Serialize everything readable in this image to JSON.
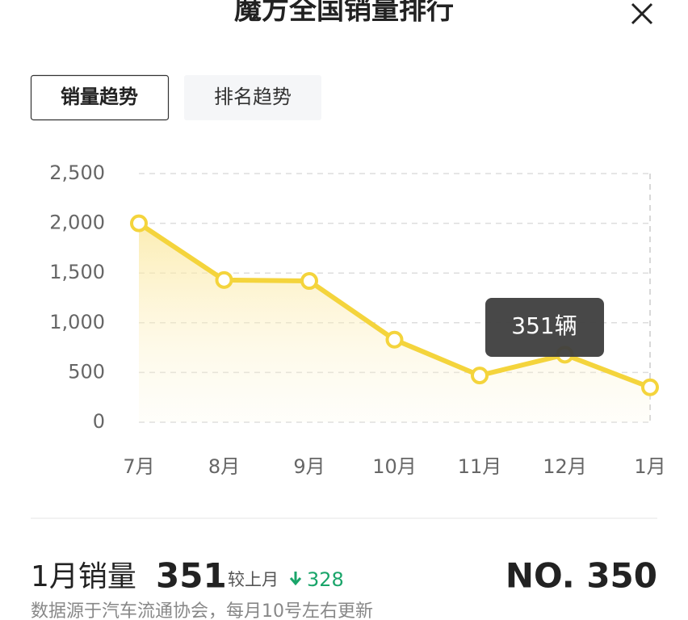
{
  "header": {
    "title": "魔方全国销量排行"
  },
  "tabs": [
    "销量趋势",
    "排名趋势"
  ],
  "chart_data": {
    "type": "line",
    "categories": [
      "7月",
      "8月",
      "9月",
      "10月",
      "11月",
      "12月",
      "1月"
    ],
    "values": [
      2000,
      1430,
      1420,
      830,
      470,
      679,
      351
    ],
    "color": "#f4d43c",
    "ylim": [
      0,
      2500
    ],
    "yticks": [
      0,
      500,
      {
        "value": 1000,
        "label": "1,000"
      },
      {
        "value": 1500,
        "label": "1,500"
      },
      {
        "value": 2000,
        "label": "2,000"
      },
      {
        "value": 2500,
        "label": "2,500"
      }
    ],
    "grid": true,
    "tooltip": "351辆"
  },
  "summary": {
    "label": "1月销量",
    "value": "351",
    "compare_label": "较上月",
    "change": "328",
    "rank": "NO. 350",
    "note": "数据源于汽车流通协会，每月10号左右更新"
  }
}
